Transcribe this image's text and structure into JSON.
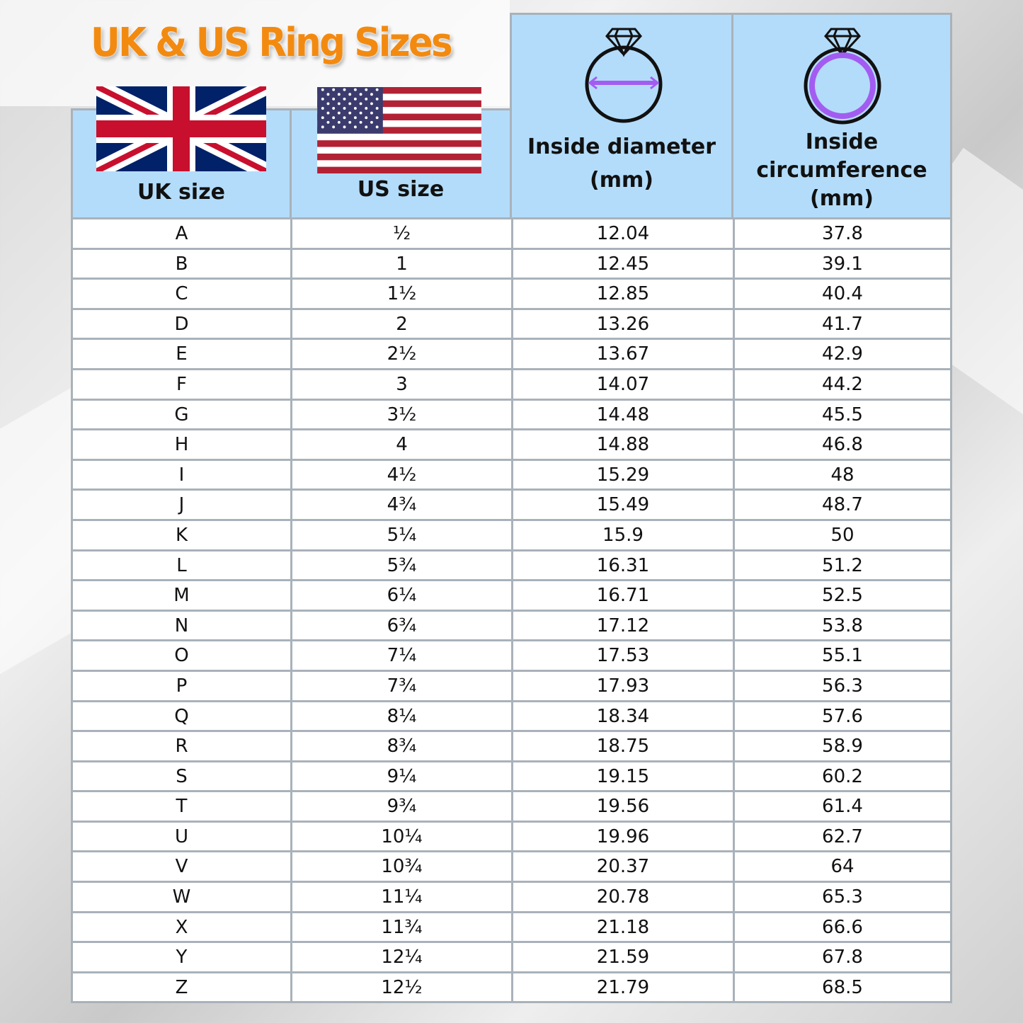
{
  "title": "UK & US Ring Sizes",
  "colors": {
    "title": "#f38a10",
    "header_bg": "#b3dcfa",
    "arrow": "#a35cf2",
    "border": "#a9b2ba"
  },
  "headers": {
    "uk": "UK size",
    "us": "US size",
    "diameter": [
      "Inside diameter",
      "(mm)"
    ],
    "circumference": [
      "Inside",
      "circumference",
      "(mm)"
    ]
  },
  "icons": [
    "uk-flag-icon",
    "us-flag-icon",
    "ring-diameter-icon",
    "ring-circumference-icon"
  ],
  "rows": [
    [
      "A",
      "½",
      "12.04",
      "37.8"
    ],
    [
      "B",
      "1",
      "12.45",
      "39.1"
    ],
    [
      "C",
      "1½",
      "12.85",
      "40.4"
    ],
    [
      "D",
      "2",
      "13.26",
      "41.7"
    ],
    [
      "E",
      "2½",
      "13.67",
      "42.9"
    ],
    [
      "F",
      "3",
      "14.07",
      "44.2"
    ],
    [
      "G",
      "3½",
      "14.48",
      "45.5"
    ],
    [
      "H",
      "4",
      "14.88",
      "46.8"
    ],
    [
      "I",
      "4½",
      "15.29",
      "48"
    ],
    [
      "J",
      "4¾",
      "15.49",
      "48.7"
    ],
    [
      "K",
      "5¼",
      "15.9",
      "50"
    ],
    [
      "L",
      "5¾",
      "16.31",
      "51.2"
    ],
    [
      "M",
      "6¼",
      "16.71",
      "52.5"
    ],
    [
      "N",
      "6¾",
      "17.12",
      "53.8"
    ],
    [
      "O",
      "7¼",
      "17.53",
      "55.1"
    ],
    [
      "P",
      "7¾",
      "17.93",
      "56.3"
    ],
    [
      "Q",
      "8¼",
      "18.34",
      "57.6"
    ],
    [
      "R",
      "8¾",
      "18.75",
      "58.9"
    ],
    [
      "S",
      "9¼",
      "19.15",
      "60.2"
    ],
    [
      "T",
      "9¾",
      "19.56",
      "61.4"
    ],
    [
      "U",
      "10¼",
      "19.96",
      "62.7"
    ],
    [
      "V",
      "10¾",
      "20.37",
      "64"
    ],
    [
      "W",
      "11¼",
      "20.78",
      "65.3"
    ],
    [
      "X",
      "11¾",
      "21.18",
      "66.6"
    ],
    [
      "Y",
      "12¼",
      "21.59",
      "67.8"
    ],
    [
      "Z",
      "12½",
      "21.79",
      "68.5"
    ]
  ]
}
